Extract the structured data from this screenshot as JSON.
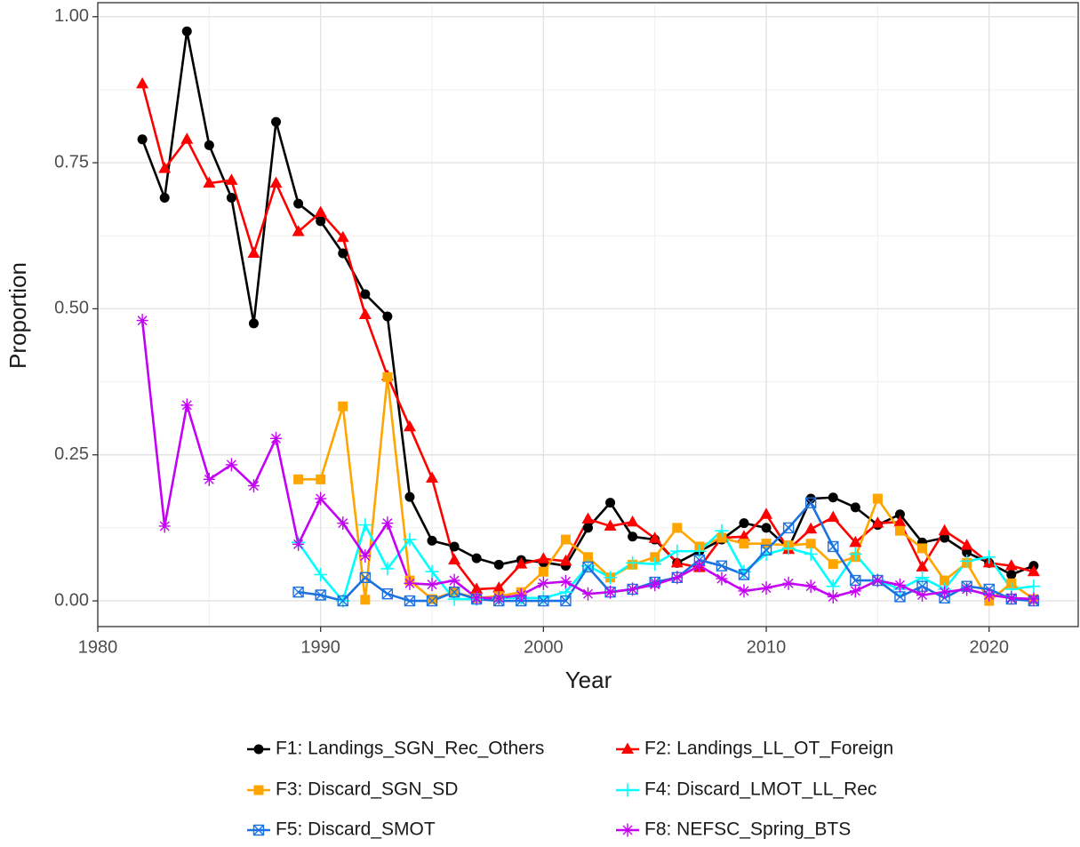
{
  "chart_data": {
    "type": "line",
    "x_label": "Year",
    "y_label": "Proportion",
    "x": [
      1982,
      1983,
      1984,
      1985,
      1986,
      1987,
      1988,
      1989,
      1990,
      1991,
      1992,
      1993,
      1994,
      1995,
      1996,
      1997,
      1998,
      1999,
      2000,
      2001,
      2002,
      2003,
      2004,
      2005,
      2006,
      2007,
      2008,
      2009,
      2010,
      2011,
      2012,
      2013,
      2014,
      2015,
      2016,
      2017,
      2018,
      2019,
      2020,
      2021,
      2022
    ],
    "xlim": [
      1980,
      2024
    ],
    "xticks": [
      1980,
      1990,
      2000,
      2010,
      2020
    ],
    "ylim": [
      -0.044,
      1.024
    ],
    "yticks": [
      {
        "value": 0,
        "label": "0.00"
      },
      {
        "value": 0.25,
        "label": "0.25"
      },
      {
        "value": 0.5,
        "label": "0.50"
      },
      {
        "value": 0.75,
        "label": "0.75"
      },
      {
        "value": 1,
        "label": "1.00"
      }
    ],
    "grid": true,
    "legend": "bottom",
    "series": [
      {
        "name": "F1: Landings_SGN_Rec_Others",
        "color": "#000000",
        "marker": "circle",
        "values": [
          0.79,
          0.69,
          0.975,
          0.78,
          0.69,
          0.475,
          0.82,
          0.68,
          0.65,
          0.595,
          0.525,
          0.487,
          0.178,
          0.103,
          0.093,
          0.073,
          0.062,
          0.07,
          0.066,
          0.06,
          0.125,
          0.168,
          0.11,
          0.105,
          0.065,
          0.085,
          0.105,
          0.133,
          0.125,
          0.09,
          0.175,
          0.177,
          0.16,
          0.13,
          0.148,
          0.1,
          0.108,
          0.083,
          0.065,
          0.045,
          0.06
        ]
      },
      {
        "name": "F2: Landings_LL_OT_Foreign",
        "color": "#FF0000",
        "marker": "triangle",
        "values": [
          0.885,
          0.74,
          0.79,
          0.715,
          0.72,
          0.595,
          0.715,
          0.632,
          0.665,
          0.622,
          0.49,
          0.385,
          0.298,
          0.21,
          0.07,
          0.02,
          0.022,
          0.063,
          0.072,
          0.068,
          0.14,
          0.128,
          0.135,
          0.107,
          0.065,
          0.057,
          0.108,
          0.11,
          0.148,
          0.088,
          0.123,
          0.143,
          0.1,
          0.133,
          0.135,
          0.058,
          0.12,
          0.095,
          0.065,
          0.06,
          0.05
        ]
      },
      {
        "name": "F3: Discard_SGN_SD",
        "color": "#FFA500",
        "marker": "square",
        "values": [
          null,
          null,
          null,
          null,
          null,
          null,
          null,
          0.208,
          0.208,
          0.333,
          0.002,
          0.383,
          0.035,
          0.003,
          0.015,
          0.005,
          0.008,
          0.015,
          0.05,
          0.105,
          0.075,
          0.04,
          0.062,
          0.075,
          0.125,
          0.093,
          0.108,
          0.098,
          0.098,
          0.095,
          0.098,
          0.063,
          0.075,
          0.175,
          0.12,
          0.09,
          0.035,
          0.065,
          0,
          0.03,
          0.003
        ]
      },
      {
        "name": "F4: Discard_LMOT_LL_Rec",
        "color": "#00FFFF",
        "marker": "plus",
        "values": [
          null,
          null,
          null,
          null,
          null,
          null,
          null,
          0.1,
          0.045,
          0,
          0.13,
          0.055,
          0.105,
          0.05,
          0.003,
          0.003,
          0.005,
          0.005,
          0.005,
          0.015,
          0.06,
          0.04,
          0.065,
          0.063,
          0.085,
          0.085,
          0.12,
          0.05,
          0.08,
          0.09,
          0.08,
          0.025,
          0.08,
          0.035,
          0.02,
          0.04,
          0.02,
          0.068,
          0.075,
          0.02,
          0.025
        ]
      },
      {
        "name": "F5: Discard_SMOT",
        "color": "#1C72E0",
        "marker": "boxx",
        "values": [
          null,
          null,
          null,
          null,
          null,
          null,
          null,
          0.015,
          0.01,
          0,
          0.04,
          0.012,
          0,
          0,
          0.015,
          0.003,
          0,
          0,
          0,
          0,
          0.058,
          0.015,
          0.02,
          0.032,
          0.04,
          0.07,
          0.06,
          0.045,
          0.087,
          0.125,
          0.168,
          0.093,
          0.035,
          0.035,
          0.007,
          0.025,
          0.005,
          0.025,
          0.02,
          0.003,
          0
        ]
      },
      {
        "name": "F8: NEFSC_Spring_BTS",
        "color": "#C400F5",
        "marker": "asterisk",
        "values": [
          0.48,
          0.128,
          0.335,
          0.208,
          0.233,
          0.197,
          0.278,
          0.097,
          0.175,
          0.133,
          0.077,
          0.133,
          0.03,
          0.028,
          0.035,
          0.005,
          0.005,
          0.01,
          0.03,
          0.033,
          0.012,
          0.015,
          0.02,
          0.028,
          0.04,
          0.06,
          0.038,
          0.017,
          0.022,
          0.03,
          0.025,
          0.007,
          0.017,
          0.035,
          0.027,
          0.01,
          0.015,
          0.02,
          0.01,
          0.005,
          0.003
        ]
      }
    ]
  }
}
